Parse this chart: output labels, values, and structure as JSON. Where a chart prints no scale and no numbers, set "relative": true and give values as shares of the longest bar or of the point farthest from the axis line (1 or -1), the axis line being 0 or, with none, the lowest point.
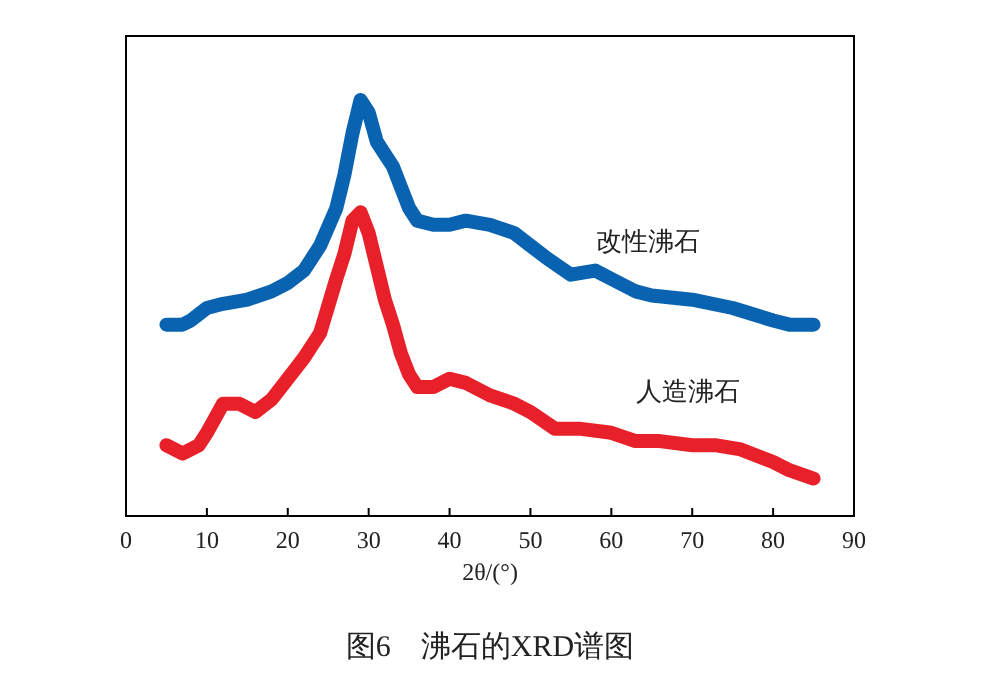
{
  "chart_data": {
    "type": "line",
    "relative": true,
    "xlabel": "2θ/(°)",
    "xlim": [
      0,
      90
    ],
    "xticks": [
      0,
      10,
      20,
      30,
      40,
      50,
      60,
      70,
      80,
      90
    ],
    "grid": false,
    "line_style": "solid",
    "annotations": [
      "图6　沸石的XRD谱图"
    ],
    "series": [
      {
        "name": "改性沸石",
        "color": "#0a63b0",
        "x": [
          5,
          7,
          8,
          10,
          12,
          15,
          18,
          20,
          22,
          24,
          26,
          27,
          28,
          29,
          30,
          31,
          32,
          33,
          34,
          35,
          36,
          38,
          40,
          42,
          45,
          48,
          50,
          52,
          55,
          58,
          60,
          63,
          65,
          70,
          75,
          80,
          82,
          85
        ],
        "values": [
          0.46,
          0.46,
          0.47,
          0.5,
          0.51,
          0.52,
          0.54,
          0.56,
          0.59,
          0.65,
          0.74,
          0.82,
          0.92,
          1,
          0.97,
          0.9,
          0.87,
          0.84,
          0.79,
          0.74,
          0.71,
          0.7,
          0.7,
          0.71,
          0.7,
          0.68,
          0.65,
          0.62,
          0.58,
          0.59,
          0.57,
          0.54,
          0.53,
          0.52,
          0.5,
          0.47,
          0.46,
          0.46
        ]
      },
      {
        "name": "人造沸石",
        "color": "#e8202a",
        "x": [
          5,
          7,
          9,
          10,
          12,
          14,
          16,
          18,
          20,
          22,
          24,
          26,
          27,
          28,
          29,
          30,
          31,
          32,
          33,
          34,
          35,
          36,
          38,
          40,
          42,
          45,
          48,
          50,
          53,
          56,
          60,
          63,
          66,
          70,
          73,
          76,
          80,
          82,
          85
        ],
        "values": [
          0.17,
          0.15,
          0.17,
          0.2,
          0.27,
          0.27,
          0.25,
          0.28,
          0.33,
          0.38,
          0.44,
          0.57,
          0.63,
          0.71,
          0.73,
          0.68,
          0.6,
          0.52,
          0.46,
          0.39,
          0.34,
          0.31,
          0.31,
          0.33,
          0.32,
          0.29,
          0.27,
          0.25,
          0.21,
          0.21,
          0.2,
          0.18,
          0.18,
          0.17,
          0.17,
          0.16,
          0.13,
          0.11,
          0.09
        ]
      }
    ]
  }
}
